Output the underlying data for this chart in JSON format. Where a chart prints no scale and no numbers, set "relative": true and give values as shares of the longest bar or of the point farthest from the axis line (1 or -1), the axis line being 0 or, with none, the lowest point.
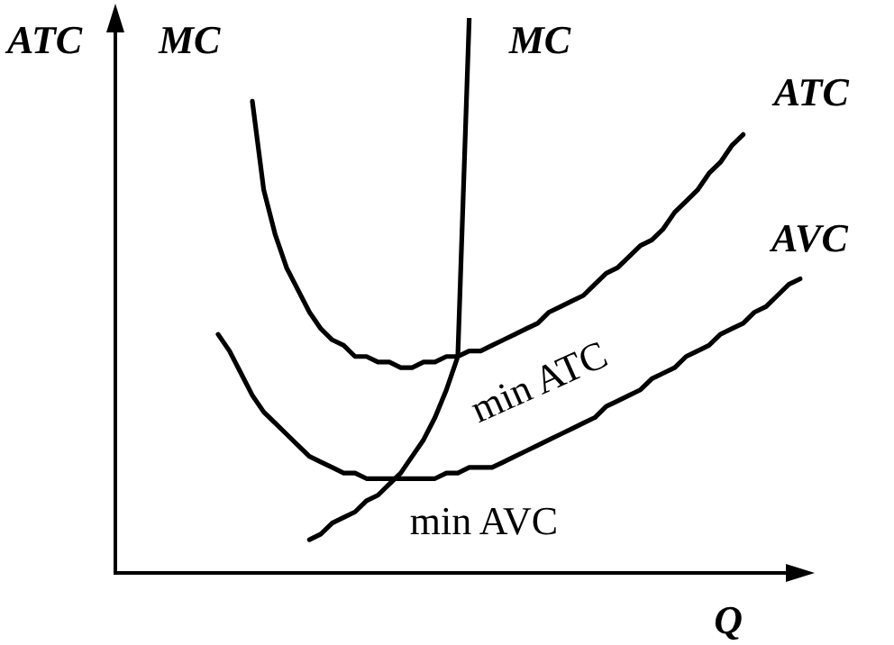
{
  "chart_data": {
    "type": "line",
    "relative": true,
    "xlabel": "Q",
    "ylabel": "ATC",
    "grid": false,
    "legend": false,
    "marker": "none",
    "line_style": "solid",
    "categories": [
      null,
      null,
      null,
      null,
      null,
      null,
      null,
      null,
      null,
      null,
      null,
      null,
      null,
      null,
      null,
      null,
      null,
      null,
      null,
      null,
      null,
      null,
      null,
      null,
      null,
      null,
      null,
      null,
      null,
      null,
      null,
      null,
      null,
      null,
      null,
      null,
      null,
      null,
      null,
      null,
      null,
      null,
      null,
      null,
      null,
      null,
      null,
      null,
      null,
      null,
      null,
      null,
      null,
      null,
      null,
      null,
      null,
      null,
      null,
      null,
      null
    ],
    "series": [
      {
        "name": "MC",
        "color": "#000000",
        "values": [
          null,
          null,
          null,
          null,
          null,
          null,
          null,
          null,
          null,
          null,
          null,
          null,
          null,
          null,
          null,
          null,
          null,
          0.06,
          0.07,
          0.09,
          0.1,
          0.11,
          0.13,
          0.14,
          0.16,
          0.18,
          0.21,
          0.24,
          0.28,
          0.33,
          0.39,
          1,
          null,
          null,
          null,
          null,
          null,
          null,
          null,
          null,
          null,
          null,
          null,
          null,
          null,
          null,
          null,
          null,
          null,
          null,
          null,
          null,
          null,
          null,
          null,
          null,
          null,
          null,
          null,
          null,
          null
        ]
      },
      {
        "name": "ATC",
        "color": "#000000",
        "values": [
          null,
          null,
          null,
          null,
          null,
          null,
          null,
          null,
          null,
          null,
          null,
          null,
          0.85,
          0.69,
          0.61,
          0.55,
          0.51,
          0.47,
          0.44,
          0.42,
          0.41,
          0.39,
          0.39,
          0.38,
          0.38,
          0.37,
          0.37,
          0.38,
          0.38,
          0.39,
          0.39,
          0.4,
          0.4,
          0.41,
          0.42,
          0.43,
          0.44,
          0.45,
          0.47,
          0.48,
          0.49,
          0.5,
          0.52,
          0.54,
          0.55,
          0.57,
          0.59,
          0.6,
          0.62,
          0.65,
          0.67,
          0.69,
          0.72,
          0.74,
          0.77,
          0.79,
          null,
          null,
          null,
          null,
          null
        ]
      },
      {
        "name": "AVC",
        "color": "#000000",
        "values": [
          null,
          null,
          null,
          null,
          null,
          null,
          null,
          null,
          null,
          0.43,
          0.4,
          0.36,
          0.32,
          0.29,
          0.27,
          0.25,
          0.23,
          0.21,
          0.2,
          0.19,
          0.18,
          0.18,
          0.17,
          0.17,
          0.17,
          0.17,
          0.17,
          0.17,
          0.17,
          0.18,
          0.18,
          0.19,
          0.19,
          0.19,
          0.2,
          0.21,
          0.22,
          0.23,
          0.24,
          0.25,
          0.26,
          0.27,
          0.28,
          0.3,
          0.31,
          0.32,
          0.33,
          0.35,
          0.36,
          0.37,
          0.39,
          0.4,
          0.41,
          0.43,
          0.44,
          0.45,
          0.47,
          0.48,
          0.5,
          0.52,
          0.53
        ]
      }
    ],
    "annotations": [
      "MC",
      "min ATC",
      "min AVC"
    ]
  }
}
